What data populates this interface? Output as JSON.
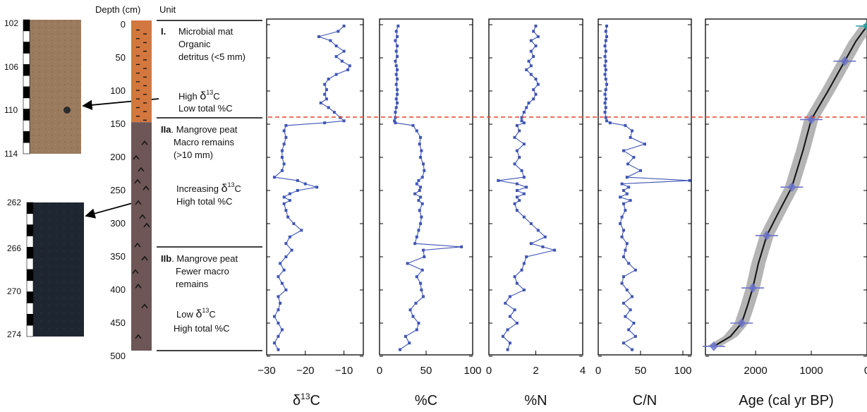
{
  "header": {
    "depth_label": "Depth (cm)",
    "unit_label": "Unit"
  },
  "colors": {
    "unit1": "#d2773f",
    "unit2": "#6e5656",
    "series": "#3f55b5",
    "boundary": "#e8452c",
    "age_band": "#a7a7a7",
    "age_marker": "#6b73c9",
    "age_top_marker": "#2aa0a0"
  },
  "depth_axis": {
    "ticks": [
      "0",
      "50",
      "100",
      "150",
      "200",
      "250",
      "300",
      "350",
      "400",
      "450",
      "500"
    ]
  },
  "core_photos": [
    {
      "ticks": [
        "102",
        "106",
        "110",
        "114"
      ]
    },
    {
      "ticks": [
        "262",
        "266",
        "270",
        "274"
      ]
    }
  ],
  "units": {
    "unit1": {
      "roman": "I.",
      "lines": [
        "Microbial mat",
        "Organic",
        "detritus (<5 mm)"
      ],
      "lines2": [
        "High ",
        "Low total %C"
      ],
      "delta_prefix": "δ",
      "sup": "13",
      "delta_suffix": "C"
    },
    "unit2a": {
      "roman": "IIa",
      "lines": [
        ". Mangrove peat",
        "Macro remains",
        "(>10 mm)"
      ],
      "lines2": [
        "Increasing ",
        "High total %C"
      ],
      "delta_prefix": "δ",
      "sup": "13",
      "delta_suffix": "C"
    },
    "unit2b": {
      "roman": "IIb",
      "lines": [
        ". Mangrove peat",
        "Fewer macro",
        "remains"
      ],
      "lines2": [
        "Low ",
        "High total %C"
      ],
      "delta_prefix": "δ",
      "sup": "13",
      "delta_suffix": "C"
    }
  },
  "chart_data": [
    {
      "type": "line",
      "xlabel_main": "δ",
      "xlabel_sup": "13",
      "xlabel_tail": "C",
      "xlim": [
        -30,
        -5
      ],
      "ylim": [
        0,
        500
      ],
      "y_direction": "down",
      "x_ticks": [
        "−30",
        "−20",
        "−10"
      ],
      "depth": [
        2,
        10,
        18,
        24,
        32,
        40,
        48,
        55,
        62,
        68,
        75,
        82,
        90,
        98,
        105,
        112,
        118,
        125,
        132,
        140,
        145,
        148,
        152,
        160,
        170,
        180,
        190,
        200,
        210,
        220,
        230,
        235,
        240,
        245,
        250,
        255,
        260,
        265,
        270,
        280,
        290,
        300,
        310,
        320,
        330,
        340,
        350,
        360,
        370,
        380,
        390,
        400,
        410,
        420,
        430,
        440,
        450,
        460,
        470,
        480,
        490
      ],
      "values": [
        -10,
        -11.5,
        -16.5,
        -13.5,
        -12,
        -10,
        -12,
        -10.5,
        -8.5,
        -9,
        -12,
        -14,
        -15,
        -14.5,
        -15,
        -14.5,
        -16,
        -14,
        -12.5,
        -11,
        -10,
        -15,
        -25,
        -25.5,
        -25,
        -25.5,
        -26,
        -26,
        -25.5,
        -26,
        -28,
        -22,
        -20,
        -17,
        -22,
        -24,
        -25.5,
        -24,
        -25.5,
        -25,
        -24.5,
        -23,
        -21,
        -24,
        -25,
        -23.5,
        -25,
        -26.5,
        -25.5,
        -27,
        -26,
        -25,
        -27,
        -26.5,
        -27,
        -28,
        -27,
        -26,
        -27,
        -28,
        -27
      ]
    },
    {
      "type": "line",
      "xlabel": "%C",
      "xlim": [
        0,
        100
      ],
      "ylim": [
        0,
        500
      ],
      "y_direction": "down",
      "x_ticks": [
        "0",
        "50",
        "100"
      ],
      "depth": [
        2,
        10,
        18,
        24,
        32,
        40,
        48,
        55,
        62,
        68,
        75,
        82,
        90,
        98,
        105,
        112,
        118,
        125,
        132,
        140,
        145,
        148,
        152,
        160,
        170,
        180,
        190,
        200,
        210,
        220,
        230,
        235,
        240,
        245,
        250,
        255,
        260,
        265,
        270,
        280,
        290,
        300,
        310,
        320,
        330,
        335,
        340,
        350,
        360,
        370,
        380,
        390,
        400,
        410,
        420,
        430,
        440,
        450,
        460,
        470,
        480,
        490
      ],
      "values": [
        20,
        18,
        19,
        17,
        19,
        18,
        19,
        17,
        18,
        19,
        18,
        19,
        18,
        19,
        19,
        18,
        19,
        18,
        17,
        17,
        16,
        17,
        36,
        40,
        44,
        43,
        45,
        44,
        47,
        48,
        46,
        42,
        40,
        44,
        43,
        38,
        44,
        42,
        46,
        43,
        45,
        44,
        42,
        40,
        38,
        88,
        47,
        48,
        30,
        46,
        40,
        44,
        45,
        47,
        39,
        33,
        36,
        42,
        40,
        28,
        32,
        22
      ]
    },
    {
      "type": "line",
      "xlabel": "%N",
      "xlim": [
        0,
        4
      ],
      "ylim": [
        0,
        500
      ],
      "y_direction": "down",
      "x_ticks": [
        "0",
        "2",
        "4"
      ],
      "depth": [
        2,
        10,
        18,
        24,
        32,
        40,
        48,
        55,
        62,
        68,
        75,
        82,
        90,
        98,
        105,
        112,
        118,
        125,
        132,
        140,
        145,
        148,
        152,
        160,
        170,
        180,
        190,
        200,
        210,
        220,
        230,
        235,
        240,
        245,
        250,
        255,
        260,
        265,
        270,
        280,
        290,
        300,
        310,
        320,
        330,
        335,
        340,
        350,
        360,
        370,
        380,
        390,
        400,
        410,
        420,
        430,
        440,
        450,
        460,
        470,
        480,
        490
      ],
      "values": [
        2,
        1.9,
        2.1,
        1.8,
        2,
        1.8,
        1.9,
        1.7,
        1.8,
        1.6,
        1.8,
        2,
        2.1,
        1.9,
        2,
        1.9,
        1.7,
        1.6,
        1.5,
        1.4,
        1.4,
        1.5,
        1.2,
        1.3,
        1.1,
        1.5,
        1.2,
        1.3,
        1.1,
        1.4,
        1.5,
        0.4,
        1.2,
        1.6,
        1.2,
        1.5,
        1.2,
        1.3,
        1.1,
        1.2,
        1.5,
        1.8,
        2.1,
        2.4,
        1.8,
        2.3,
        2.8,
        1.6,
        1.5,
        1.4,
        1.1,
        1.2,
        1.5,
        0.9,
        0.7,
        1.1,
        0.9,
        1.2,
        0.8,
        0.6,
        0.9,
        0.8
      ]
    },
    {
      "type": "line",
      "xlabel": "C/N",
      "xlim": [
        0,
        110
      ],
      "ylim": [
        0,
        500
      ],
      "y_direction": "down",
      "x_ticks": [
        "0",
        "50",
        "100"
      ],
      "depth": [
        2,
        10,
        18,
        24,
        32,
        40,
        48,
        55,
        62,
        68,
        75,
        82,
        90,
        98,
        105,
        112,
        118,
        125,
        132,
        140,
        145,
        148,
        152,
        160,
        170,
        180,
        190,
        200,
        210,
        220,
        230,
        235,
        240,
        245,
        250,
        255,
        260,
        265,
        270,
        280,
        290,
        300,
        310,
        320,
        330,
        340,
        350,
        360,
        370,
        380,
        390,
        400,
        410,
        420,
        430,
        440,
        450,
        460,
        470,
        480,
        490
      ],
      "values": [
        10,
        9,
        10,
        9,
        8,
        9,
        8,
        9,
        8,
        9,
        8,
        9,
        10,
        9,
        8,
        9,
        8,
        9,
        8,
        9,
        10,
        14,
        32,
        40,
        38,
        55,
        30,
        42,
        35,
        50,
        34,
        108,
        28,
        36,
        30,
        34,
        26,
        38,
        30,
        32,
        28,
        26,
        30,
        28,
        34,
        32,
        30,
        36,
        44,
        30,
        28,
        34,
        40,
        30,
        38,
        32,
        42,
        36,
        44,
        30,
        40
      ]
    },
    {
      "type": "scatter",
      "xlabel": "Age (cal yr BP)",
      "xlim": [
        2900,
        0
      ],
      "ylim": [
        0,
        500
      ],
      "y_direction": "down",
      "x_ticks": [
        "2000",
        "1000",
        "0"
      ],
      "points": [
        {
          "age": 0,
          "depth": 2
        },
        {
          "age": 400,
          "depth": 55
        },
        {
          "age": 1000,
          "depth": 143
        },
        {
          "age": 1350,
          "depth": 245
        },
        {
          "age": 1800,
          "depth": 318
        },
        {
          "age": 2050,
          "depth": 397
        },
        {
          "age": 2250,
          "depth": 450
        },
        {
          "age": 2750,
          "depth": 485
        }
      ],
      "curve": {
        "age": [
          0,
          200,
          400,
          700,
          1000,
          1150,
          1350,
          1600,
          1800,
          1950,
          2050,
          2150,
          2250,
          2450,
          2750
        ],
        "depth": [
          2,
          25,
          55,
          100,
          143,
          190,
          245,
          285,
          318,
          360,
          397,
          425,
          450,
          470,
          485
        ]
      }
    }
  ]
}
